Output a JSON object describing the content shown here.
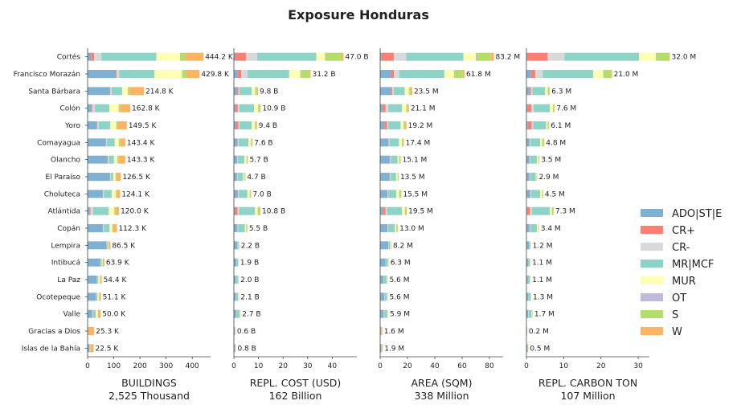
{
  "chart_data": {
    "type": "bar",
    "orientation": "horizontal",
    "stacked": true,
    "title": "Exposure Honduras",
    "legend_position": "right",
    "categories": [
      "Cortés",
      "Francisco Morazán",
      "Santa Bárbara",
      "Colón",
      "Yoro",
      "Comayagua",
      "Olancho",
      "El Paraíso",
      "Choluteca",
      "Atlántida",
      "Copán",
      "Lempira",
      "Intibucá",
      "La Paz",
      "Ocotepeque",
      "Valle",
      "Gracias a Dios",
      "Islas de la Bahía"
    ],
    "legend": [
      {
        "name": "ADO|ST|E",
        "color": "#80b1d3"
      },
      {
        "name": "CR+",
        "color": "#fb8072"
      },
      {
        "name": "CR-",
        "color": "#d9d9d9"
      },
      {
        "name": "MR|MCF",
        "color": "#8dd3c7"
      },
      {
        "name": "MUR",
        "color": "#ffffb3"
      },
      {
        "name": "OT",
        "color": "#bebada"
      },
      {
        "name": "S",
        "color": "#b3de69"
      },
      {
        "name": "W",
        "color": "#fdb462"
      }
    ],
    "panels": [
      {
        "xlabel": "BUILDINGS",
        "subtitle": "2,525 Thousand",
        "xlim": [
          0,
          470
        ],
        "xticks": [
          0,
          100,
          200,
          300,
          400
        ],
        "totals": [
          "444.2 K",
          "429.8 K",
          "214.8 K",
          "162.8 K",
          "149.5 K",
          "143.4 K",
          "143.3 K",
          "126.5 K",
          "124.1 K",
          "120.0 K",
          "112.3 K",
          "86.5 K",
          "63.9 K",
          "54.4 K",
          "51.1 K",
          "50.0 K",
          "25.3 K",
          "22.5 K"
        ],
        "values": [
          [
            13,
            12,
            28,
            210,
            90,
            2,
            20,
            68
          ],
          [
            108,
            3,
            10,
            135,
            105,
            2,
            15,
            50
          ],
          [
            85,
            2,
            5,
            40,
            22,
            1,
            5,
            55
          ],
          [
            15,
            3,
            10,
            55,
            35,
            1,
            5,
            39
          ],
          [
            35,
            2,
            5,
            45,
            22,
            1,
            5,
            35
          ],
          [
            70,
            1,
            3,
            30,
            15,
            1,
            5,
            19
          ],
          [
            75,
            2,
            4,
            20,
            12,
            1,
            5,
            25
          ],
          [
            85,
            1,
            2,
            10,
            8,
            1,
            3,
            17
          ],
          [
            58,
            1,
            3,
            30,
            15,
            1,
            3,
            13
          ],
          [
            8,
            3,
            10,
            60,
            20,
            1,
            5,
            13
          ],
          [
            58,
            1,
            3,
            22,
            10,
            1,
            3,
            14
          ],
          [
            73,
            0,
            1,
            3,
            2,
            0,
            1,
            7
          ],
          [
            48,
            0,
            1,
            5,
            3,
            0,
            1,
            6
          ],
          [
            35,
            0,
            1,
            5,
            6,
            0,
            1,
            6
          ],
          [
            32,
            0,
            1,
            5,
            5,
            0,
            1,
            7
          ],
          [
            18,
            1,
            2,
            10,
            8,
            0,
            1,
            10
          ],
          [
            2,
            0,
            0,
            0,
            0,
            0,
            0,
            23
          ],
          [
            7,
            0,
            0,
            2,
            1,
            0,
            0,
            13
          ]
        ]
      },
      {
        "xlabel": "REPL. COST (USD)",
        "subtitle": "162 Billion",
        "xlim": [
          0,
          50
        ],
        "xticks": [
          0,
          10,
          20,
          30,
          40
        ],
        "totals": [
          "47.0 B",
          "31.2 B",
          "9.8 B",
          "10.9 B",
          "9.4 B",
          "7.6 B",
          "5.7 B",
          "4.7 B",
          "7.0 B",
          "10.8 B",
          "5.5 B",
          "2.2 B",
          "1.9 B",
          "2.0 B",
          "2.1 B",
          "2.7 B",
          "0.6 B",
          "0.8 B"
        ],
        "values": [
          [
            0.5,
            4.5,
            4.5,
            24,
            3.5,
            0.3,
            6.5,
            0.8
          ],
          [
            1.5,
            1.5,
            2.5,
            17,
            4.5,
            0.2,
            3.5,
            0.5
          ],
          [
            1.2,
            0.6,
            0.5,
            5,
            1.3,
            0.1,
            0.7,
            0.4
          ],
          [
            0.6,
            1,
            0.6,
            6,
            1.6,
            0.1,
            0.6,
            0.4
          ],
          [
            0.8,
            1,
            0.5,
            5,
            1.2,
            0.1,
            0.5,
            0.3
          ],
          [
            1.4,
            0.2,
            0.3,
            4,
            1,
            0.1,
            0.3,
            0.3
          ],
          [
            1.3,
            0.1,
            0.2,
            2.7,
            0.8,
            0.1,
            0.3,
            0.2
          ],
          [
            1.2,
            0.1,
            0.2,
            2.3,
            0.5,
            0.1,
            0.2,
            0.1
          ],
          [
            1.5,
            0.2,
            0.3,
            3.5,
            0.9,
            0.1,
            0.3,
            0.2
          ],
          [
            0.5,
            1,
            0.6,
            6.5,
            1,
            0.1,
            0.8,
            0.3
          ],
          [
            1.4,
            0.1,
            0.2,
            2.8,
            0.5,
            0.1,
            0.3,
            0.1
          ],
          [
            1.3,
            0,
            0.1,
            0.5,
            0.1,
            0,
            0.1,
            0.1
          ],
          [
            1,
            0,
            0.1,
            0.6,
            0.1,
            0,
            0,
            0.1
          ],
          [
            0.8,
            0,
            0.1,
            0.7,
            0.1,
            0,
            0.2,
            0.1
          ],
          [
            0.8,
            0,
            0.1,
            0.8,
            0.2,
            0,
            0.1,
            0.1
          ],
          [
            0.9,
            0.1,
            0.1,
            1.2,
            0.2,
            0,
            0.1,
            0.1
          ],
          [
            0.3,
            0,
            0,
            0.1,
            0,
            0,
            0,
            0.2
          ],
          [
            0.3,
            0,
            0,
            0.3,
            0,
            0,
            0,
            0.2
          ]
        ]
      },
      {
        "xlabel": "AREA (SQM)",
        "subtitle": "338 Million",
        "xlim": [
          0,
          90
        ],
        "xticks": [
          0,
          20,
          40,
          60,
          80
        ],
        "totals": [
          "83.2 M",
          "61.8 M",
          "23.5 M",
          "21.1 M",
          "19.2 M",
          "17.4 M",
          "15.1 M",
          "13.5 M",
          "15.5 M",
          "19.5 M",
          "13.0 M",
          "8.2 M",
          "6.3 M",
          "5.6 M",
          "5.6 M",
          "5.9 M",
          "1.6 M",
          "1.9 M"
        ],
        "values": [
          [
            1,
            9,
            9,
            42,
            9,
            1,
            10,
            2.2
          ],
          [
            8,
            2,
            4,
            33,
            7,
            0.5,
            6,
            1.3
          ],
          [
            8,
            1,
            1,
            8,
            3,
            0.2,
            1,
            1.3
          ],
          [
            2,
            2,
            2,
            10,
            3,
            0.2,
            1,
            0.9
          ],
          [
            3,
            2,
            1,
            9,
            2,
            0.2,
            1,
            1
          ],
          [
            6,
            0.3,
            0.5,
            7,
            2,
            0.1,
            1,
            0.5
          ],
          [
            7,
            0.3,
            0.5,
            5,
            1,
            0.1,
            1,
            0.2
          ],
          [
            7,
            0.2,
            0.5,
            4,
            1,
            0.1,
            0.5,
            0.2
          ],
          [
            5,
            0.3,
            0.5,
            6,
            2,
            0.1,
            1,
            0.6
          ],
          [
            2,
            2,
            1,
            11,
            2,
            0.1,
            1,
            0.4
          ],
          [
            5,
            0.3,
            0.5,
            5,
            1,
            0.1,
            0.8,
            0.3
          ],
          [
            6,
            0,
            0.2,
            1,
            0.5,
            0,
            0.2,
            0.3
          ],
          [
            4,
            0,
            0.1,
            1.5,
            0.3,
            0,
            0.2,
            0.2
          ],
          [
            2.5,
            0.1,
            0.2,
            2,
            0.4,
            0,
            0.2,
            0.2
          ],
          [
            3,
            0.1,
            0.2,
            1.8,
            0.2,
            0,
            0.1,
            0.2
          ],
          [
            2.5,
            0.2,
            0.3,
            2.2,
            0.4,
            0,
            0.1,
            0.2
          ],
          [
            0.5,
            0,
            0,
            0.2,
            0,
            0,
            0,
            0.9
          ],
          [
            0.7,
            0,
            0,
            0.5,
            0.1,
            0,
            0,
            0.6
          ]
        ]
      },
      {
        "xlabel": "REPL. CARBON TON",
        "subtitle": "107 Million",
        "xlim": [
          0,
          33
        ],
        "xticks": [
          0,
          10,
          20,
          30
        ],
        "totals": [
          "32.0 M",
          "21.0 M",
          "6.3 M",
          "7.6 M",
          "6.1 M",
          "4.8 M",
          "3.5 M",
          "2.9 M",
          "4.5 M",
          "7.3 M",
          "3.4 M",
          "1.2 M",
          "1.1 M",
          "1.1 M",
          "1.3 M",
          "1.7 M",
          "0.2 M",
          "0.5 M"
        ],
        "values": [
          [
            0.2,
            5.5,
            4.5,
            20,
            4.5,
            0.2,
            3.5,
            0.1
          ],
          [
            1.2,
            1.2,
            2,
            13.5,
            2.7,
            0.1,
            2.2,
            0.1
          ],
          [
            0.8,
            0.4,
            0.4,
            3.4,
            0.7,
            0.1,
            0.4,
            0.1
          ],
          [
            0.3,
            1,
            0.6,
            4.4,
            0.8,
            0,
            0.4,
            0.1
          ],
          [
            0.4,
            1,
            0.4,
            3.5,
            0.4,
            0,
            0.3,
            0.1
          ],
          [
            0.8,
            0.1,
            0.2,
            2.6,
            0.5,
            0,
            0.5,
            0.1
          ],
          [
            0.8,
            0.1,
            0.1,
            1.8,
            0.4,
            0,
            0.2,
            0.1
          ],
          [
            0.8,
            0.1,
            0.1,
            1.5,
            0.2,
            0,
            0.1,
            0.1
          ],
          [
            1,
            0.1,
            0.2,
            2.4,
            0.5,
            0,
            0.2,
            0.1
          ],
          [
            0.2,
            0.8,
            0.5,
            4.8,
            0.5,
            0,
            0.4,
            0.1
          ],
          [
            0.8,
            0.1,
            0.1,
            1.8,
            0.4,
            0,
            0.1,
            0.1
          ],
          [
            0.7,
            0,
            0,
            0.3,
            0.1,
            0,
            0,
            0.1
          ],
          [
            0.5,
            0,
            0,
            0.4,
            0.1,
            0,
            0,
            0.1
          ],
          [
            0.4,
            0,
            0,
            0.5,
            0.1,
            0,
            0,
            0.1
          ],
          [
            0.5,
            0,
            0,
            0.6,
            0.1,
            0,
            0,
            0.1
          ],
          [
            0.5,
            0,
            0.1,
            0.8,
            0.2,
            0,
            0,
            0.1
          ],
          [
            0.1,
            0,
            0,
            0,
            0,
            0,
            0,
            0.1
          ],
          [
            0.2,
            0,
            0,
            0.1,
            0,
            0,
            0,
            0.2
          ]
        ]
      }
    ]
  }
}
